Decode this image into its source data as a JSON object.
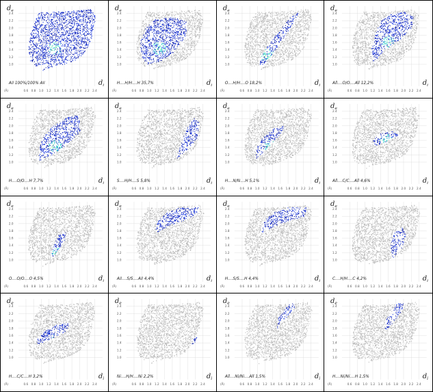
{
  "axes": {
    "y_symbol": "d",
    "y_subscript": "e",
    "x_symbol": "d",
    "x_subscript": "i",
    "origin_label": "(Å)"
  },
  "chart_data": [
    {
      "type": "scatter",
      "contact": "All",
      "label": "All 100%/100% All",
      "percent": 100.0,
      "x_ticks": [
        0.6,
        0.8,
        1.0,
        1.2,
        1.4,
        1.6,
        1.8,
        2.0,
        2.2,
        2.4
      ],
      "y_ticks": [
        1.0,
        1.2,
        1.4,
        1.6,
        1.8,
        2.0,
        2.2,
        2.4
      ],
      "xlim": [
        0.4,
        2.6
      ],
      "ylim": [
        0.4,
        2.6
      ],
      "grid": true
    },
    {
      "type": "scatter",
      "contact": "H...H",
      "label": "H....H/H....H 35,7%",
      "percent": 35.7,
      "x_ticks": [
        0.6,
        0.8,
        1.0,
        1.2,
        1.4,
        1.6,
        1.8,
        2.0,
        2.2,
        2.4
      ],
      "y_ticks": [
        1.0,
        1.2,
        1.4,
        1.6,
        1.8,
        2.0,
        2.2,
        2.4
      ],
      "xlim": [
        0.4,
        2.6
      ],
      "ylim": [
        0.4,
        2.6
      ],
      "grid": true
    },
    {
      "type": "scatter",
      "contact": "O...H",
      "label": "O....H/H....O 18,2%",
      "percent": 18.2,
      "x_ticks": [
        0.6,
        0.8,
        1.0,
        1.2,
        1.4,
        1.6,
        1.8,
        2.0,
        2.2,
        2.4
      ],
      "y_ticks": [
        1.0,
        1.2,
        1.4,
        1.6,
        1.8,
        2.0,
        2.2,
        2.4
      ],
      "xlim": [
        0.4,
        2.6
      ],
      "ylim": [
        0.4,
        2.6
      ],
      "grid": true
    },
    {
      "type": "scatter",
      "contact": "All...O",
      "label": "All....O/O....All 12,2%",
      "percent": 12.2,
      "x_ticks": [
        0.6,
        0.8,
        1.0,
        1.2,
        1.4,
        1.6,
        1.8,
        2.0,
        2.2,
        2.4
      ],
      "y_ticks": [
        1.0,
        1.2,
        1.4,
        1.6,
        1.8,
        2.0,
        2.2,
        2.4
      ],
      "xlim": [
        0.4,
        2.6
      ],
      "ylim": [
        0.4,
        2.6
      ],
      "grid": true
    },
    {
      "type": "scatter",
      "contact": "H...O",
      "label": "H....O/O....H 7,7%",
      "percent": 7.7,
      "x_ticks": [
        0.6,
        0.8,
        1.0,
        1.2,
        1.4,
        1.6,
        1.8,
        2.0,
        2.2,
        2.4
      ],
      "y_ticks": [
        1.0,
        1.2,
        1.4,
        1.6,
        1.8,
        2.0,
        2.2,
        2.4
      ],
      "xlim": [
        0.4,
        2.6
      ],
      "ylim": [
        0.4,
        2.6
      ],
      "grid": true
    },
    {
      "type": "scatter",
      "contact": "S...H",
      "label": "S....H/H....S 5,8%",
      "percent": 5.8,
      "x_ticks": [
        0.6,
        0.8,
        1.0,
        1.2,
        1.4,
        1.6,
        1.8,
        2.0,
        2.2,
        2.4
      ],
      "y_ticks": [
        1.0,
        1.2,
        1.4,
        1.6,
        1.8,
        2.0,
        2.2,
        2.4
      ],
      "xlim": [
        0.4,
        2.6
      ],
      "ylim": [
        0.4,
        2.6
      ],
      "grid": true
    },
    {
      "type": "scatter",
      "contact": "H...N",
      "label": "H....N/N....H 5,1%",
      "percent": 5.1,
      "x_ticks": [
        0.6,
        0.8,
        1.0,
        1.2,
        1.4,
        1.6,
        1.8,
        2.0,
        2.2,
        2.4
      ],
      "y_ticks": [
        1.0,
        1.2,
        1.4,
        1.6,
        1.8,
        2.0,
        2.2,
        2.4
      ],
      "xlim": [
        0.4,
        2.6
      ],
      "ylim": [
        0.4,
        2.6
      ],
      "grid": true
    },
    {
      "type": "scatter",
      "contact": "All...C",
      "label": "All....C/C....All 4,6%",
      "percent": 4.6,
      "x_ticks": [
        0.6,
        0.8,
        1.0,
        1.2,
        1.4,
        1.6,
        1.8,
        2.0,
        2.2,
        2.4
      ],
      "y_ticks": [
        1.0,
        1.2,
        1.4,
        1.6,
        1.8,
        2.0,
        2.2,
        2.4
      ],
      "xlim": [
        0.4,
        2.6
      ],
      "ylim": [
        0.4,
        2.6
      ],
      "grid": true
    },
    {
      "type": "scatter",
      "contact": "O...O",
      "label": "O....O/O....O 4,5%",
      "percent": 4.5,
      "x_ticks": [
        0.6,
        0.8,
        1.0,
        1.2,
        1.4,
        1.6,
        1.8,
        2.0,
        2.2,
        2.4
      ],
      "y_ticks": [
        1.0,
        1.2,
        1.4,
        1.6,
        1.8,
        2.0,
        2.2,
        2.4
      ],
      "xlim": [
        0.4,
        2.6
      ],
      "ylim": [
        0.4,
        2.6
      ],
      "grid": true
    },
    {
      "type": "scatter",
      "contact": "All...S",
      "label": "All....S/S....All 4,4%",
      "percent": 4.4,
      "x_ticks": [
        0.6,
        0.8,
        1.0,
        1.2,
        1.4,
        1.6,
        1.8,
        2.0,
        2.2,
        2.4
      ],
      "y_ticks": [
        1.0,
        1.2,
        1.4,
        1.6,
        1.8,
        2.0,
        2.2,
        2.4
      ],
      "xlim": [
        0.4,
        2.6
      ],
      "ylim": [
        0.4,
        2.6
      ],
      "grid": true
    },
    {
      "type": "scatter",
      "contact": "H...S",
      "label": "H....S/S....H 4,4%",
      "percent": 4.4,
      "x_ticks": [
        0.6,
        0.8,
        1.0,
        1.2,
        1.4,
        1.6,
        1.8,
        2.0,
        2.2,
        2.4
      ],
      "y_ticks": [
        1.0,
        1.2,
        1.4,
        1.6,
        1.8,
        2.0,
        2.2,
        2.4
      ],
      "xlim": [
        0.4,
        2.6
      ],
      "ylim": [
        0.4,
        2.6
      ],
      "grid": true
    },
    {
      "type": "scatter",
      "contact": "C...H",
      "label": "C....H/H....C 4,2%",
      "percent": 4.2,
      "x_ticks": [
        0.6,
        0.8,
        1.0,
        1.2,
        1.4,
        1.6,
        1.8,
        2.0,
        2.2,
        2.4
      ],
      "y_ticks": [
        1.0,
        1.2,
        1.4,
        1.6,
        1.8,
        2.0,
        2.2,
        2.4
      ],
      "xlim": [
        0.4,
        2.6
      ],
      "ylim": [
        0.4,
        2.6
      ],
      "grid": true
    },
    {
      "type": "scatter",
      "contact": "H...C",
      "label": "H....C/C....H 3,2%",
      "percent": 3.2,
      "x_ticks": [
        0.6,
        0.8,
        1.0,
        1.2,
        1.4,
        1.6,
        1.8,
        2.0,
        2.2,
        2.4
      ],
      "y_ticks": [
        1.0,
        1.2,
        1.4,
        1.6,
        1.8,
        2.0,
        2.2,
        2.4
      ],
      "xlim": [
        0.4,
        2.6
      ],
      "ylim": [
        0.4,
        2.6
      ],
      "grid": true
    },
    {
      "type": "scatter",
      "contact": "Ni...H",
      "label": "Ni....H/H....Ni 2,2%",
      "percent": 2.2,
      "x_ticks": [
        0.6,
        0.8,
        1.0,
        1.2,
        1.4,
        1.6,
        1.8,
        2.0,
        2.2,
        2.4
      ],
      "y_ticks": [
        1.0,
        1.2,
        1.4,
        1.6,
        1.8,
        2.0,
        2.2,
        2.4
      ],
      "xlim": [
        0.4,
        2.6
      ],
      "ylim": [
        0.4,
        2.6
      ],
      "grid": true
    },
    {
      "type": "scatter",
      "contact": "All...Ni",
      "label": "All....Ni/Ni....All 1,5%",
      "percent": 1.5,
      "x_ticks": [
        0.6,
        0.8,
        1.0,
        1.2,
        1.4,
        1.6,
        1.8,
        2.0,
        2.2,
        2.4
      ],
      "y_ticks": [
        1.0,
        1.2,
        1.4,
        1.6,
        1.8,
        2.0,
        2.2,
        2.4
      ],
      "xlim": [
        0.4,
        2.6
      ],
      "ylim": [
        0.4,
        2.6
      ],
      "grid": true
    },
    {
      "type": "scatter",
      "contact": "H...Ni",
      "label": "H....Ni/Ni....H 1,5%",
      "percent": 1.5,
      "x_ticks": [
        0.6,
        0.8,
        1.0,
        1.2,
        1.4,
        1.6,
        1.8,
        2.0,
        2.2,
        2.4
      ],
      "y_ticks": [
        1.0,
        1.2,
        1.4,
        1.6,
        1.8,
        2.0,
        2.2,
        2.4
      ],
      "xlim": [
        0.4,
        2.6
      ],
      "ylim": [
        0.4,
        2.6
      ],
      "grid": true
    }
  ],
  "colors": {
    "background_points": "#b9b9b9",
    "highlight_blue": "#1030e0",
    "highlight_dark": "#0a1aa8",
    "highlight_cyan": "#1fd0c8",
    "highlight_green": "#30e070",
    "gridline": "#d8d8d8"
  }
}
